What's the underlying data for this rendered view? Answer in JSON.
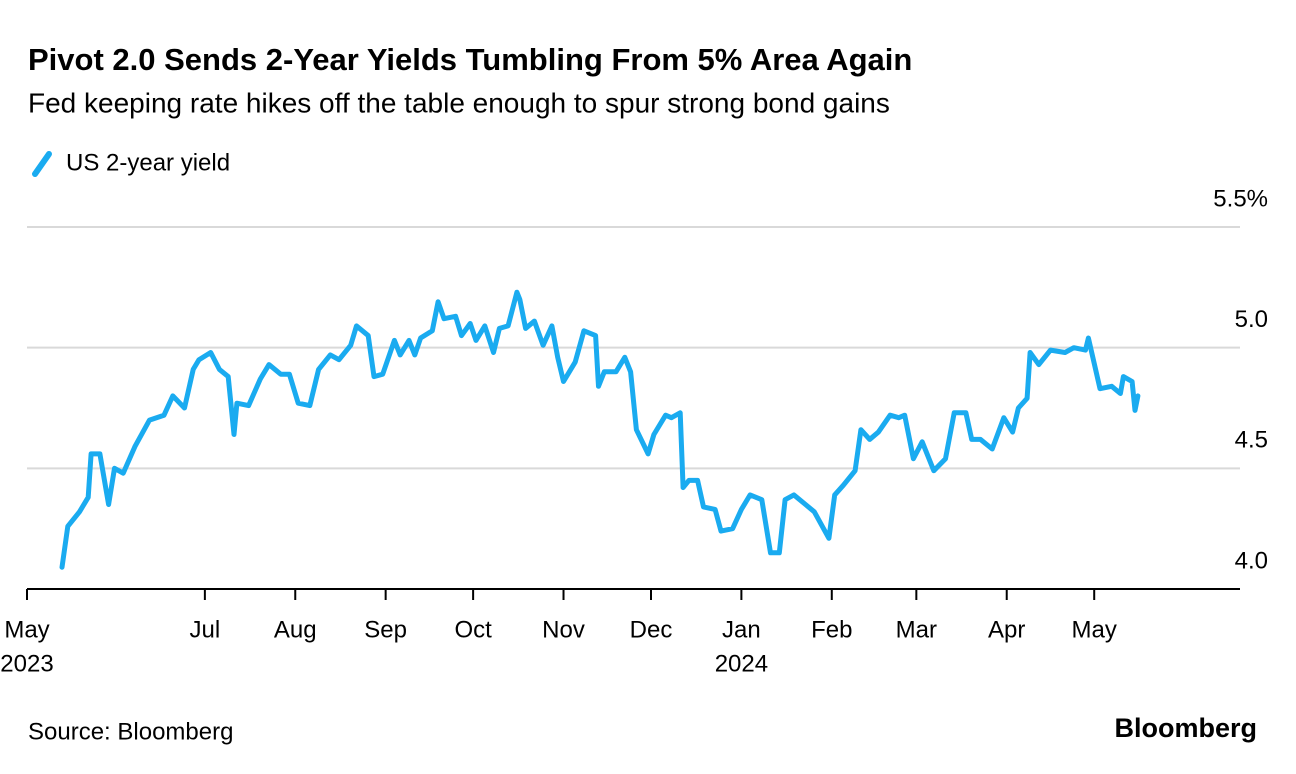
{
  "chart_data": {
    "type": "line",
    "title": "Pivot 2.0 Sends 2-Year Yields Tumbling From 5% Area Again",
    "subtitle": "Fed keeping rate hikes off the table enough to spur strong bond gains",
    "source": "Source: Bloomberg",
    "brand": "Bloomberg",
    "x": [
      "2023-05-13",
      "2023-05-15",
      "2023-05-19",
      "2023-05-22",
      "2023-05-23",
      "2023-05-26",
      "2023-05-29",
      "2023-05-31",
      "2023-06-03",
      "2023-06-07",
      "2023-06-12",
      "2023-06-17",
      "2023-06-20",
      "2023-06-24",
      "2023-06-27",
      "2023-06-29",
      "2023-07-03",
      "2023-07-06",
      "2023-07-09",
      "2023-07-11",
      "2023-07-12",
      "2023-07-16",
      "2023-07-20",
      "2023-07-23",
      "2023-07-27",
      "2023-07-30",
      "2023-08-02",
      "2023-08-06",
      "2023-08-09",
      "2023-08-13",
      "2023-08-16",
      "2023-08-20",
      "2023-08-22",
      "2023-08-26",
      "2023-08-28",
      "2023-08-31",
      "2023-09-04",
      "2023-09-06",
      "2023-09-09",
      "2023-09-11",
      "2023-09-13",
      "2023-09-17",
      "2023-09-19",
      "2023-09-21",
      "2023-09-25",
      "2023-09-27",
      "2023-09-30",
      "2023-10-02",
      "2023-10-05",
      "2023-10-08",
      "2023-10-10",
      "2023-10-13",
      "2023-10-16",
      "2023-10-17",
      "2023-10-19",
      "2023-10-22",
      "2023-10-25",
      "2023-10-28",
      "2023-10-30",
      "2023-11-01",
      "2023-11-05",
      "2023-11-08",
      "2023-11-12",
      "2023-11-13",
      "2023-11-15",
      "2023-11-19",
      "2023-11-22",
      "2023-11-24",
      "2023-11-26",
      "2023-11-30",
      "2023-12-02",
      "2023-12-06",
      "2023-12-08",
      "2023-12-11",
      "2023-12-12",
      "2023-12-14",
      "2023-12-17",
      "2023-12-19",
      "2023-12-23",
      "2023-12-25",
      "2023-12-29",
      "2024-01-01",
      "2024-01-04",
      "2024-01-08",
      "2024-01-11",
      "2024-01-14",
      "2024-01-16",
      "2024-01-19",
      "2024-01-23",
      "2024-01-26",
      "2024-01-31",
      "2024-02-02",
      "2024-02-05",
      "2024-02-09",
      "2024-02-11",
      "2024-02-14",
      "2024-02-17",
      "2024-02-21",
      "2024-02-24",
      "2024-02-26",
      "2024-02-29",
      "2024-03-03",
      "2024-03-07",
      "2024-03-11",
      "2024-03-14",
      "2024-03-18",
      "2024-03-20",
      "2024-03-23",
      "2024-03-27",
      "2024-03-31",
      "2024-04-03",
      "2024-04-05",
      "2024-04-08",
      "2024-04-09",
      "2024-04-12",
      "2024-04-16",
      "2024-04-21",
      "2024-04-24",
      "2024-04-28",
      "2024-04-29",
      "2024-05-03",
      "2024-05-07",
      "2024-05-10",
      "2024-05-11",
      "2024-05-14",
      "2024-05-15",
      "2024-05-16"
    ],
    "series": [
      {
        "name": "US 2-year yield",
        "color": "#1aabf0",
        "values": [
          4.09,
          4.26,
          4.32,
          4.38,
          4.56,
          4.56,
          4.35,
          4.5,
          4.48,
          4.59,
          4.7,
          4.72,
          4.8,
          4.75,
          4.91,
          4.95,
          4.98,
          4.91,
          4.88,
          4.64,
          4.77,
          4.76,
          4.87,
          4.93,
          4.89,
          4.89,
          4.77,
          4.76,
          4.91,
          4.97,
          4.95,
          5.01,
          5.09,
          5.05,
          4.88,
          4.89,
          5.03,
          4.97,
          5.03,
          4.97,
          5.04,
          5.07,
          5.19,
          5.12,
          5.13,
          5.05,
          5.1,
          5.03,
          5.09,
          4.98,
          5.08,
          5.09,
          5.23,
          5.2,
          5.08,
          5.11,
          5.01,
          5.09,
          4.96,
          4.86,
          4.94,
          5.07,
          5.05,
          4.84,
          4.9,
          4.9,
          4.96,
          4.9,
          4.66,
          4.56,
          4.64,
          4.72,
          4.71,
          4.73,
          4.42,
          4.45,
          4.45,
          4.34,
          4.33,
          4.24,
          4.25,
          4.33,
          4.39,
          4.37,
          4.15,
          4.15,
          4.37,
          4.39,
          4.35,
          4.32,
          4.21,
          4.39,
          4.43,
          4.49,
          4.66,
          4.62,
          4.65,
          4.72,
          4.71,
          4.72,
          4.54,
          4.61,
          4.49,
          4.54,
          4.73,
          4.73,
          4.62,
          4.62,
          4.58,
          4.71,
          4.65,
          4.75,
          4.79,
          4.98,
          4.93,
          4.99,
          4.98,
          5.0,
          4.99,
          5.04,
          4.83,
          4.84,
          4.81,
          4.88,
          4.86,
          4.74,
          4.8
        ]
      }
    ],
    "xlim": [
      "2023-05-01",
      "2024-06-20"
    ],
    "xticks": [
      {
        "value": "2023-05-01",
        "label": "May",
        "year": "2023"
      },
      {
        "value": "2023-07-01",
        "label": "Jul"
      },
      {
        "value": "2023-08-01",
        "label": "Aug"
      },
      {
        "value": "2023-09-01",
        "label": "Sep"
      },
      {
        "value": "2023-10-01",
        "label": "Oct"
      },
      {
        "value": "2023-11-01",
        "label": "Nov"
      },
      {
        "value": "2023-12-01",
        "label": "Dec"
      },
      {
        "value": "2024-01-01",
        "label": "Jan",
        "year": "2024"
      },
      {
        "value": "2024-02-01",
        "label": "Feb"
      },
      {
        "value": "2024-03-01",
        "label": "Mar"
      },
      {
        "value": "2024-04-01",
        "label": "Apr"
      },
      {
        "value": "2024-05-01",
        "label": "May"
      }
    ],
    "ylim": [
      4,
      5.5
    ],
    "yticks": [
      {
        "value": 4,
        "label": "4.0"
      },
      {
        "value": 4.5,
        "label": "4.5"
      },
      {
        "value": 5,
        "label": "5.0"
      },
      {
        "value": 5.5,
        "label": "5.5%"
      }
    ],
    "grid": true
  }
}
